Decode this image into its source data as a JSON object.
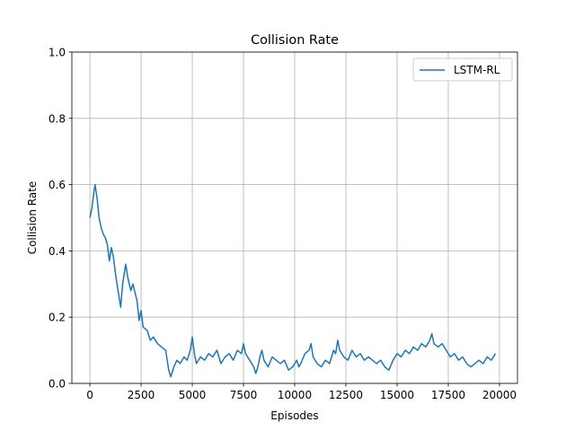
{
  "chart_data": {
    "type": "line",
    "title": "Collision Rate",
    "xlabel": "Episodes",
    "ylabel": "Collision Rate",
    "xlim": [
      -880,
      20880
    ],
    "ylim": [
      0,
      1
    ],
    "xticks": [
      0,
      2500,
      5000,
      7500,
      10000,
      12500,
      15000,
      17500,
      20000
    ],
    "yticks": [
      0.0,
      0.2,
      0.4,
      0.6,
      0.8,
      1.0
    ],
    "grid": true,
    "legend_position": "top-right",
    "series": [
      {
        "name": "LSTM-RL",
        "color": "#1f77b4",
        "points": [
          [
            0,
            0.5
          ],
          [
            100,
            0.53
          ],
          [
            200,
            0.58
          ],
          [
            250,
            0.6
          ],
          [
            350,
            0.56
          ],
          [
            450,
            0.5
          ],
          [
            550,
            0.47
          ],
          [
            650,
            0.45
          ],
          [
            750,
            0.44
          ],
          [
            850,
            0.42
          ],
          [
            950,
            0.37
          ],
          [
            1050,
            0.41
          ],
          [
            1150,
            0.38
          ],
          [
            1250,
            0.33
          ],
          [
            1350,
            0.29
          ],
          [
            1500,
            0.23
          ],
          [
            1600,
            0.3
          ],
          [
            1750,
            0.36
          ],
          [
            1850,
            0.32
          ],
          [
            2000,
            0.28
          ],
          [
            2100,
            0.3
          ],
          [
            2300,
            0.25
          ],
          [
            2400,
            0.19
          ],
          [
            2500,
            0.22
          ],
          [
            2600,
            0.17
          ],
          [
            2800,
            0.16
          ],
          [
            2950,
            0.13
          ],
          [
            3100,
            0.14
          ],
          [
            3300,
            0.12
          ],
          [
            3500,
            0.11
          ],
          [
            3700,
            0.1
          ],
          [
            3850,
            0.04
          ],
          [
            3950,
            0.02
          ],
          [
            4100,
            0.05
          ],
          [
            4250,
            0.07
          ],
          [
            4400,
            0.06
          ],
          [
            4600,
            0.08
          ],
          [
            4750,
            0.07
          ],
          [
            4900,
            0.1
          ],
          [
            5000,
            0.14
          ],
          [
            5100,
            0.09
          ],
          [
            5200,
            0.06
          ],
          [
            5400,
            0.08
          ],
          [
            5600,
            0.07
          ],
          [
            5800,
            0.09
          ],
          [
            6000,
            0.08
          ],
          [
            6200,
            0.1
          ],
          [
            6400,
            0.06
          ],
          [
            6600,
            0.08
          ],
          [
            6800,
            0.09
          ],
          [
            7000,
            0.07
          ],
          [
            7200,
            0.1
          ],
          [
            7400,
            0.09
          ],
          [
            7500,
            0.12
          ],
          [
            7600,
            0.09
          ],
          [
            7800,
            0.07
          ],
          [
            8000,
            0.05
          ],
          [
            8100,
            0.03
          ],
          [
            8200,
            0.05
          ],
          [
            8300,
            0.08
          ],
          [
            8400,
            0.1
          ],
          [
            8500,
            0.07
          ],
          [
            8700,
            0.05
          ],
          [
            8900,
            0.08
          ],
          [
            9100,
            0.07
          ],
          [
            9300,
            0.06
          ],
          [
            9500,
            0.07
          ],
          [
            9700,
            0.04
          ],
          [
            9900,
            0.05
          ],
          [
            10100,
            0.07
          ],
          [
            10200,
            0.05
          ],
          [
            10300,
            0.06
          ],
          [
            10500,
            0.09
          ],
          [
            10700,
            0.1
          ],
          [
            10800,
            0.12
          ],
          [
            10900,
            0.08
          ],
          [
            11100,
            0.06
          ],
          [
            11300,
            0.05
          ],
          [
            11500,
            0.07
          ],
          [
            11700,
            0.06
          ],
          [
            11900,
            0.1
          ],
          [
            12000,
            0.09
          ],
          [
            12100,
            0.13
          ],
          [
            12200,
            0.1
          ],
          [
            12400,
            0.08
          ],
          [
            12600,
            0.07
          ],
          [
            12800,
            0.1
          ],
          [
            13000,
            0.08
          ],
          [
            13200,
            0.09
          ],
          [
            13400,
            0.07
          ],
          [
            13600,
            0.08
          ],
          [
            13800,
            0.07
          ],
          [
            14000,
            0.06
          ],
          [
            14200,
            0.07
          ],
          [
            14400,
            0.05
          ],
          [
            14600,
            0.04
          ],
          [
            14800,
            0.07
          ],
          [
            15000,
            0.09
          ],
          [
            15200,
            0.08
          ],
          [
            15400,
            0.1
          ],
          [
            15600,
            0.09
          ],
          [
            15800,
            0.11
          ],
          [
            16000,
            0.1
          ],
          [
            16200,
            0.12
          ],
          [
            16400,
            0.11
          ],
          [
            16600,
            0.13
          ],
          [
            16700,
            0.15
          ],
          [
            16800,
            0.12
          ],
          [
            17000,
            0.11
          ],
          [
            17200,
            0.12
          ],
          [
            17400,
            0.1
          ],
          [
            17600,
            0.08
          ],
          [
            17800,
            0.09
          ],
          [
            18000,
            0.07
          ],
          [
            18200,
            0.08
          ],
          [
            18400,
            0.06
          ],
          [
            18600,
            0.05
          ],
          [
            18800,
            0.06
          ],
          [
            19000,
            0.07
          ],
          [
            19200,
            0.06
          ],
          [
            19400,
            0.08
          ],
          [
            19600,
            0.07
          ],
          [
            19800,
            0.09
          ]
        ]
      }
    ]
  }
}
